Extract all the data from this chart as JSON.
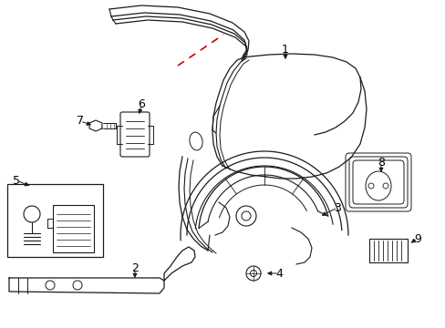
{
  "background_color": "#ffffff",
  "line_color": "#1a1a1a",
  "red_line_color": "#cc0000",
  "label_color": "#000000",
  "label_fontsize": 9,
  "figsize": [
    4.89,
    3.6
  ],
  "dpi": 100
}
